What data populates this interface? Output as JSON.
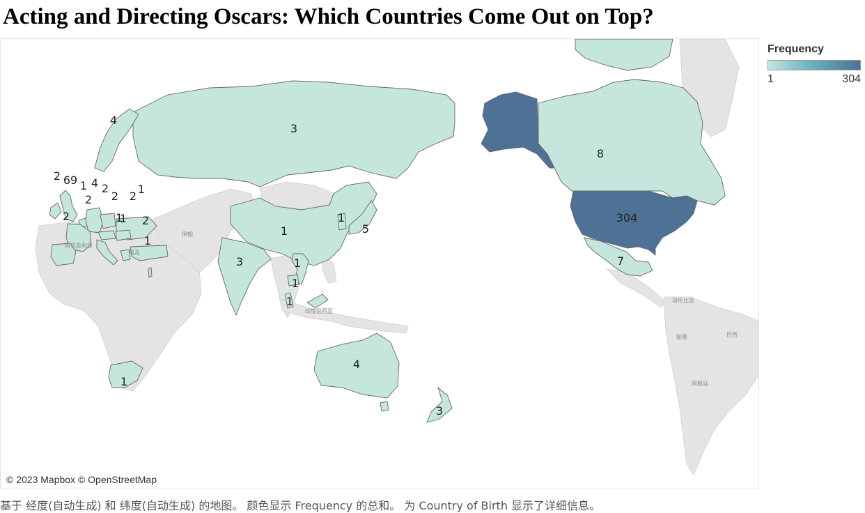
{
  "title": "Acting and Directing Oscars: Which Countries Come Out on Top?",
  "legend": {
    "title": "Frequency",
    "min": "1",
    "max": "304",
    "color_low": "#c4e6dc",
    "color_high": "#4e7196"
  },
  "attribution": "© 2023 Mapbox © OpenStreetMap",
  "caption": "基于 经度(自动生成) 和 纬度(自动生成) 的地图。 颜色显示 Frequency 的总和。 为 Country of Birth 显示了详细信息。",
  "basemap_labels": [
    "伊朗",
    "阿尔及利亚",
    "埃及",
    "印度尼西亚",
    "哥伦比亚",
    "秘鲁",
    "巴西",
    "阿根廷"
  ],
  "countries": [
    {
      "id": "russia",
      "value": "3"
    },
    {
      "id": "norway",
      "value": "4"
    },
    {
      "id": "united-kingdom",
      "value": "69"
    },
    {
      "id": "ireland",
      "value": "2"
    },
    {
      "id": "belgium",
      "value": "1"
    },
    {
      "id": "germany",
      "value": "4"
    },
    {
      "id": "poland",
      "value": "2"
    },
    {
      "id": "austria",
      "value": "2"
    },
    {
      "id": "hungary",
      "value": "2"
    },
    {
      "id": "ukraine",
      "value": "1"
    },
    {
      "id": "france",
      "value": "2"
    },
    {
      "id": "spain",
      "value": "2"
    },
    {
      "id": "italy",
      "value": "1"
    },
    {
      "id": "greece",
      "value": "1"
    },
    {
      "id": "turkey",
      "value": "2"
    },
    {
      "id": "israel",
      "value": "1"
    },
    {
      "id": "china",
      "value": "1"
    },
    {
      "id": "south-korea",
      "value": "1"
    },
    {
      "id": "japan",
      "value": "5"
    },
    {
      "id": "india",
      "value": "3"
    },
    {
      "id": "vietnam",
      "value": "1"
    },
    {
      "id": "cambodia",
      "value": "1"
    },
    {
      "id": "malaysia",
      "value": "1"
    },
    {
      "id": "australia",
      "value": "4"
    },
    {
      "id": "new-zealand",
      "value": "3"
    },
    {
      "id": "south-africa",
      "value": "1"
    },
    {
      "id": "canada",
      "value": "8"
    },
    {
      "id": "united-states",
      "value": "304"
    },
    {
      "id": "mexico",
      "value": "7"
    }
  ]
}
